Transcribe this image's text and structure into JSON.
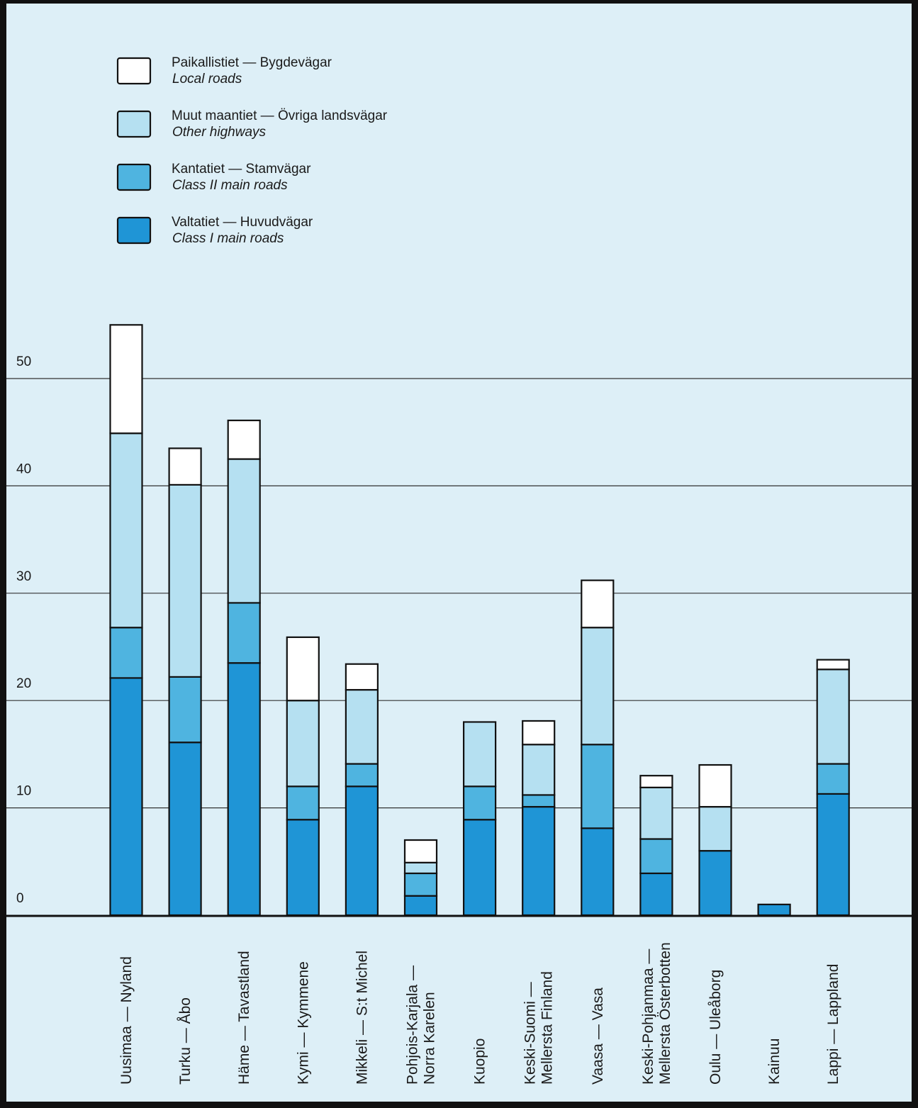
{
  "chart_data": {
    "type": "bar",
    "stacked": true,
    "ylim": [
      0,
      55
    ],
    "yticks": [
      0,
      10,
      20,
      30,
      40,
      50
    ],
    "grid": true,
    "legend_position": "top-left",
    "categories": [
      [
        "Uusimaa — Nyland"
      ],
      [
        "Turku — Åbo"
      ],
      [
        "Häme — Tavastland"
      ],
      [
        "Kymi — Kymmene"
      ],
      [
        "Mikkeli — S:t Michel"
      ],
      [
        "Pohjois-Karjala —",
        "Norra Karelen"
      ],
      [
        "Kuopio"
      ],
      [
        "Keski-Suomi —",
        "Mellersta Finland"
      ],
      [
        "Vaasa — Vasa"
      ],
      [
        "Keski-Pohjanmaa —",
        "Mellersta Österbotten"
      ],
      [
        "Oulu — Uleåborg"
      ],
      [
        "Kainuu"
      ],
      [
        "Lappi — Lappland"
      ]
    ],
    "series": [
      {
        "name": "Valtatiet — Huvudvägar",
        "name_en": "Class I main roads",
        "color": "#1f95d6",
        "values": [
          22.1,
          16.1,
          23.5,
          8.9,
          12.0,
          1.8,
          8.9,
          10.1,
          8.1,
          3.9,
          6.0,
          1.0,
          11.3
        ]
      },
      {
        "name": "Kantatiet — Stamvägar",
        "name_en": "Class II main roads",
        "color": "#4fb4e0",
        "values": [
          4.7,
          6.1,
          5.6,
          3.1,
          2.1,
          2.1,
          3.1,
          1.1,
          7.8,
          3.2,
          0.0,
          0.0,
          2.8
        ]
      },
      {
        "name": "Muut maantiet — Övriga landsvägar",
        "name_en": "Other highways",
        "color": "#b5e0f1",
        "values": [
          18.1,
          17.9,
          13.4,
          8.0,
          6.9,
          1.0,
          6.0,
          4.7,
          10.9,
          4.8,
          4.1,
          0.0,
          8.8
        ]
      },
      {
        "name": "Paikallistiet — Bygdevägar",
        "name_en": "Local roads",
        "color": "#ffffff",
        "values": [
          10.1,
          3.4,
          3.6,
          5.9,
          2.4,
          2.1,
          0.0,
          2.2,
          4.4,
          1.1,
          3.9,
          0.0,
          0.9
        ]
      }
    ],
    "legend_order": [
      3,
      2,
      1,
      0
    ]
  }
}
